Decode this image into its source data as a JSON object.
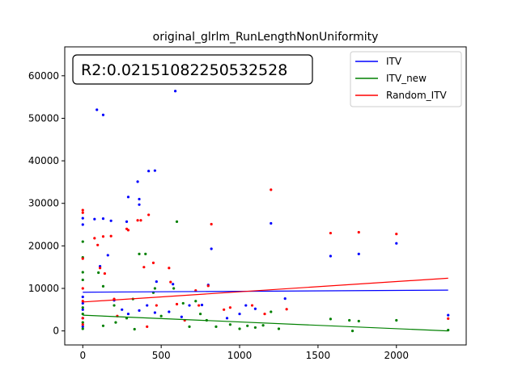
{
  "chart_data": {
    "type": "scatter",
    "title": "original_glrlm_RunLengthNonUniformity",
    "xlabel": "",
    "ylabel": "",
    "xlim": [
      -115,
      2445
    ],
    "ylim": [
      -3300,
      66800
    ],
    "x_ticks": [
      0,
      500,
      1000,
      1500,
      2000
    ],
    "y_ticks": [
      0,
      10000,
      20000,
      30000,
      40000,
      50000,
      60000
    ],
    "grid": false,
    "legend_position": "top-right",
    "annotation": "R2:0.02151082250532528",
    "series": [
      {
        "name": "ITV",
        "color": "#0000ff",
        "fit_line": [
          [
            0,
            9100
          ],
          [
            2330,
            9600
          ]
        ],
        "points": [
          [
            0,
            26500
          ],
          [
            0,
            25000
          ],
          [
            0,
            8000
          ],
          [
            0,
            6500
          ],
          [
            0,
            5000
          ],
          [
            0,
            3000
          ],
          [
            0,
            1000
          ],
          [
            75,
            26300
          ],
          [
            90,
            52000
          ],
          [
            130,
            50800
          ],
          [
            130,
            26400
          ],
          [
            110,
            15200
          ],
          [
            180,
            25900
          ],
          [
            160,
            17800
          ],
          [
            280,
            25700
          ],
          [
            290,
            31500
          ],
          [
            290,
            4000
          ],
          [
            350,
            35100
          ],
          [
            360,
            31000
          ],
          [
            360,
            29700
          ],
          [
            360,
            4800
          ],
          [
            420,
            37600
          ],
          [
            460,
            37700
          ],
          [
            460,
            4300
          ],
          [
            470,
            11600
          ],
          [
            575,
            11000
          ],
          [
            590,
            56400
          ],
          [
            550,
            4500
          ],
          [
            680,
            6000
          ],
          [
            760,
            6100
          ],
          [
            820,
            19300
          ],
          [
            800,
            10800
          ],
          [
            920,
            3000
          ],
          [
            1040,
            6000
          ],
          [
            1100,
            5200
          ],
          [
            1200,
            25300
          ],
          [
            1290,
            7600
          ],
          [
            1580,
            17600
          ],
          [
            1760,
            18100
          ],
          [
            2000,
            20600
          ],
          [
            2330,
            3700
          ],
          [
            200,
            7200
          ],
          [
            250,
            5000
          ],
          [
            410,
            6000
          ],
          [
            630,
            3300
          ],
          [
            1000,
            4000
          ]
        ]
      },
      {
        "name": "ITV_new",
        "color": "#008000",
        "fit_line": [
          [
            0,
            3700
          ],
          [
            2330,
            0
          ]
        ],
        "points": [
          [
            0,
            21000
          ],
          [
            0,
            17300
          ],
          [
            0,
            13800
          ],
          [
            0,
            12000
          ],
          [
            0,
            5500
          ],
          [
            0,
            4000
          ],
          [
            0,
            2000
          ],
          [
            0,
            500
          ],
          [
            100,
            13700
          ],
          [
            130,
            10500
          ],
          [
            130,
            1200
          ],
          [
            200,
            6000
          ],
          [
            210,
            2000
          ],
          [
            280,
            3000
          ],
          [
            320,
            7500
          ],
          [
            330,
            400
          ],
          [
            360,
            18100
          ],
          [
            400,
            18100
          ],
          [
            450,
            9000
          ],
          [
            460,
            10000
          ],
          [
            500,
            3500
          ],
          [
            580,
            10000
          ],
          [
            600,
            25700
          ],
          [
            640,
            6500
          ],
          [
            680,
            1000
          ],
          [
            720,
            7000
          ],
          [
            750,
            4000
          ],
          [
            790,
            2500
          ],
          [
            850,
            1000
          ],
          [
            940,
            1500
          ],
          [
            1000,
            500
          ],
          [
            1050,
            1200
          ],
          [
            1100,
            800
          ],
          [
            1150,
            1300
          ],
          [
            1200,
            4500
          ],
          [
            1250,
            500
          ],
          [
            1580,
            2800
          ],
          [
            1700,
            2500
          ],
          [
            1720,
            0
          ],
          [
            1760,
            2300
          ],
          [
            2000,
            2500
          ],
          [
            2330,
            200
          ]
        ]
      },
      {
        "name": "Random_ITV",
        "color": "#ff0000",
        "fit_line": [
          [
            0,
            6800
          ],
          [
            2330,
            12400
          ]
        ],
        "points": [
          [
            0,
            28400
          ],
          [
            0,
            27800
          ],
          [
            0,
            17000
          ],
          [
            0,
            10000
          ],
          [
            0,
            7000
          ],
          [
            0,
            3000
          ],
          [
            0,
            1500
          ],
          [
            75,
            21800
          ],
          [
            95,
            20200
          ],
          [
            110,
            14800
          ],
          [
            130,
            22200
          ],
          [
            140,
            13500
          ],
          [
            180,
            22300
          ],
          [
            200,
            7500
          ],
          [
            280,
            24000
          ],
          [
            290,
            23700
          ],
          [
            350,
            26000
          ],
          [
            370,
            26000
          ],
          [
            390,
            15000
          ],
          [
            420,
            27300
          ],
          [
            450,
            16000
          ],
          [
            470,
            6000
          ],
          [
            550,
            14800
          ],
          [
            560,
            11500
          ],
          [
            600,
            6300
          ],
          [
            720,
            9500
          ],
          [
            740,
            6000
          ],
          [
            800,
            10600
          ],
          [
            820,
            25100
          ],
          [
            900,
            5000
          ],
          [
            940,
            5500
          ],
          [
            1080,
            6000
          ],
          [
            1160,
            4000
          ],
          [
            1200,
            33200
          ],
          [
            1300,
            5100
          ],
          [
            1580,
            23000
          ],
          [
            1760,
            23200
          ],
          [
            2000,
            22800
          ],
          [
            2330,
            2900
          ],
          [
            220,
            3500
          ],
          [
            410,
            1000
          ],
          [
            650,
            2500
          ]
        ]
      }
    ]
  }
}
